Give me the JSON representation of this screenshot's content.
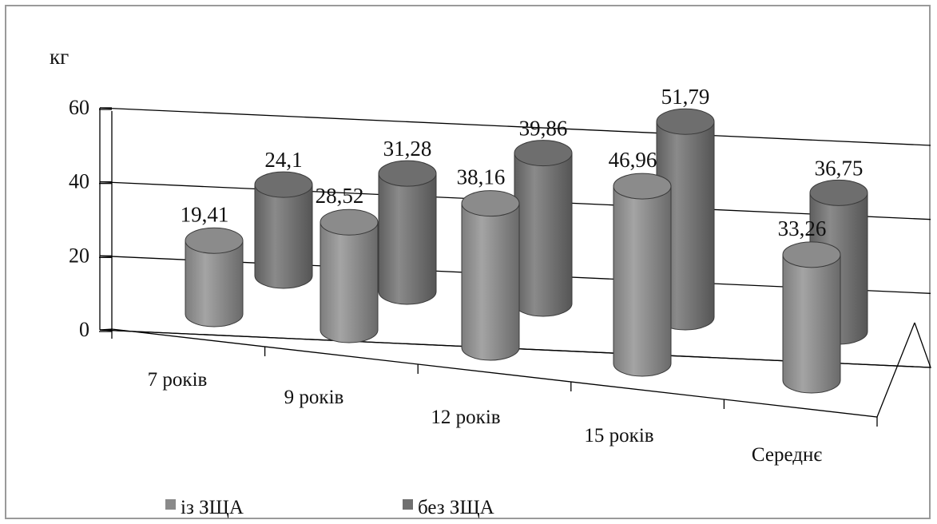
{
  "chart_data": {
    "type": "bar",
    "title": "",
    "ylabel": "кг",
    "xlabel": "",
    "ylim": [
      0,
      60
    ],
    "yticks": [
      0,
      20,
      40,
      60
    ],
    "grid": true,
    "legend_position": "bottom-left",
    "categories": [
      "7 років",
      "9 років",
      "12 років",
      "15 років",
      "Середнє"
    ],
    "series": [
      {
        "name": "із ЗЩА",
        "values": [
          19.41,
          28.52,
          38.16,
          46.96,
          33.26
        ],
        "labels": [
          "19,41",
          "28,52",
          "38,16",
          "46,96",
          "33,26"
        ],
        "color": "#8a8a8a"
      },
      {
        "name": "без ЗЩА",
        "values": [
          24.1,
          31.28,
          39.86,
          51.79,
          36.75
        ],
        "labels": [
          "24,1",
          "31,28",
          "39,86",
          "51,79",
          "36,75"
        ],
        "color": "#6f6f6f"
      }
    ]
  }
}
